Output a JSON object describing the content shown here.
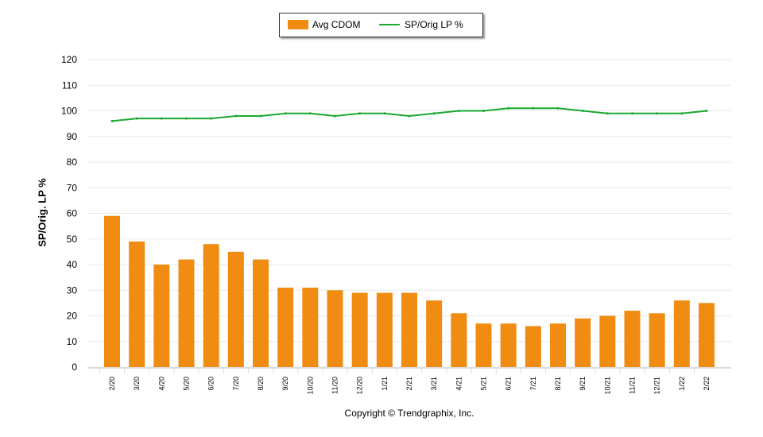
{
  "chart_data": {
    "type": "bar",
    "categories": [
      "2/20",
      "3/20",
      "4/20",
      "5/20",
      "6/20",
      "7/20",
      "8/20",
      "9/20",
      "10/20",
      "11/20",
      "12/20",
      "1/21",
      "2/21",
      "3/21",
      "4/21",
      "5/21",
      "6/21",
      "7/21",
      "8/21",
      "9/21",
      "10/21",
      "11/21",
      "12/21",
      "1/22",
      "2/22"
    ],
    "series": [
      {
        "name": "Avg CDOM",
        "type": "bar",
        "color": "#f08c12",
        "values": [
          59,
          49,
          40,
          42,
          48,
          45,
          42,
          31,
          31,
          30,
          29,
          29,
          29,
          26,
          21,
          17,
          17,
          16,
          17,
          19,
          20,
          22,
          21,
          26,
          25
        ]
      },
      {
        "name": "SP/Orig LP %",
        "type": "line",
        "color": "#1aa830",
        "values": [
          96,
          97,
          97,
          97,
          97,
          98,
          98,
          99,
          99,
          98,
          99,
          99,
          98,
          99,
          100,
          100,
          101,
          101,
          101,
          100,
          99,
          99,
          99,
          99,
          100
        ]
      }
    ],
    "ylabel": "SP/Orig. LP %",
    "ylim": [
      0,
      120
    ],
    "yticks": [
      0,
      10,
      20,
      30,
      40,
      50,
      60,
      70,
      80,
      90,
      100,
      110,
      120
    ],
    "grid": true,
    "legend": "top-center"
  },
  "footer": {
    "copyright": "Copyright © Trendgraphix, Inc."
  }
}
